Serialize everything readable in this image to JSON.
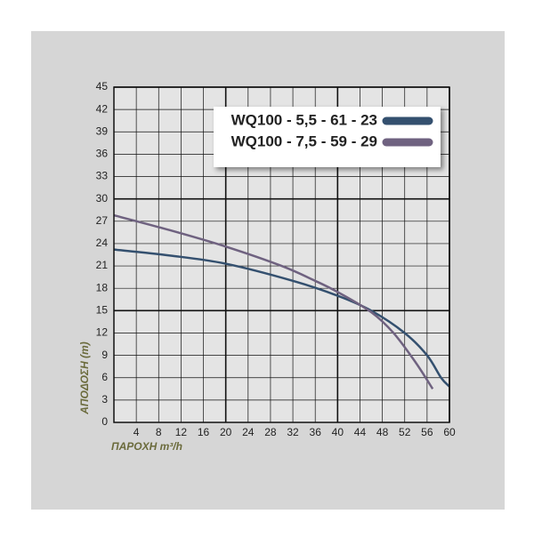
{
  "chart_data": {
    "type": "line",
    "x_label": "ΠΑΡΟΧΗ m³/h",
    "y_label": "ΑΠΟΔΟΣΗ (m)",
    "xlim": [
      0,
      60
    ],
    "ylim": [
      0,
      45
    ],
    "xticks": [
      4,
      8,
      12,
      16,
      20,
      24,
      28,
      32,
      36,
      40,
      44,
      48,
      52,
      56,
      60
    ],
    "yticks": [
      0,
      3,
      6,
      9,
      12,
      15,
      18,
      21,
      24,
      27,
      30,
      33,
      36,
      39,
      42,
      45
    ],
    "grid": true,
    "legend": "top-right",
    "series": [
      {
        "name": "WQ100 - 5,5 - 61 - 23",
        "color": "#34506f",
        "x": [
          0,
          10,
          20,
          32,
          40,
          46,
          52,
          56,
          58.5,
          60
        ],
        "values": [
          23.2,
          22.4,
          21.3,
          19,
          17,
          15,
          12,
          9,
          6,
          4.8
        ]
      },
      {
        "name": "WQ100 - 7,5 - 59 - 29",
        "color": "#6f6280",
        "x": [
          0,
          10,
          20,
          30,
          36,
          40,
          46,
          50,
          54,
          57
        ],
        "values": [
          27.8,
          25.8,
          23.6,
          21,
          19,
          17.5,
          14.8,
          12,
          8,
          4.5
        ]
      }
    ]
  }
}
